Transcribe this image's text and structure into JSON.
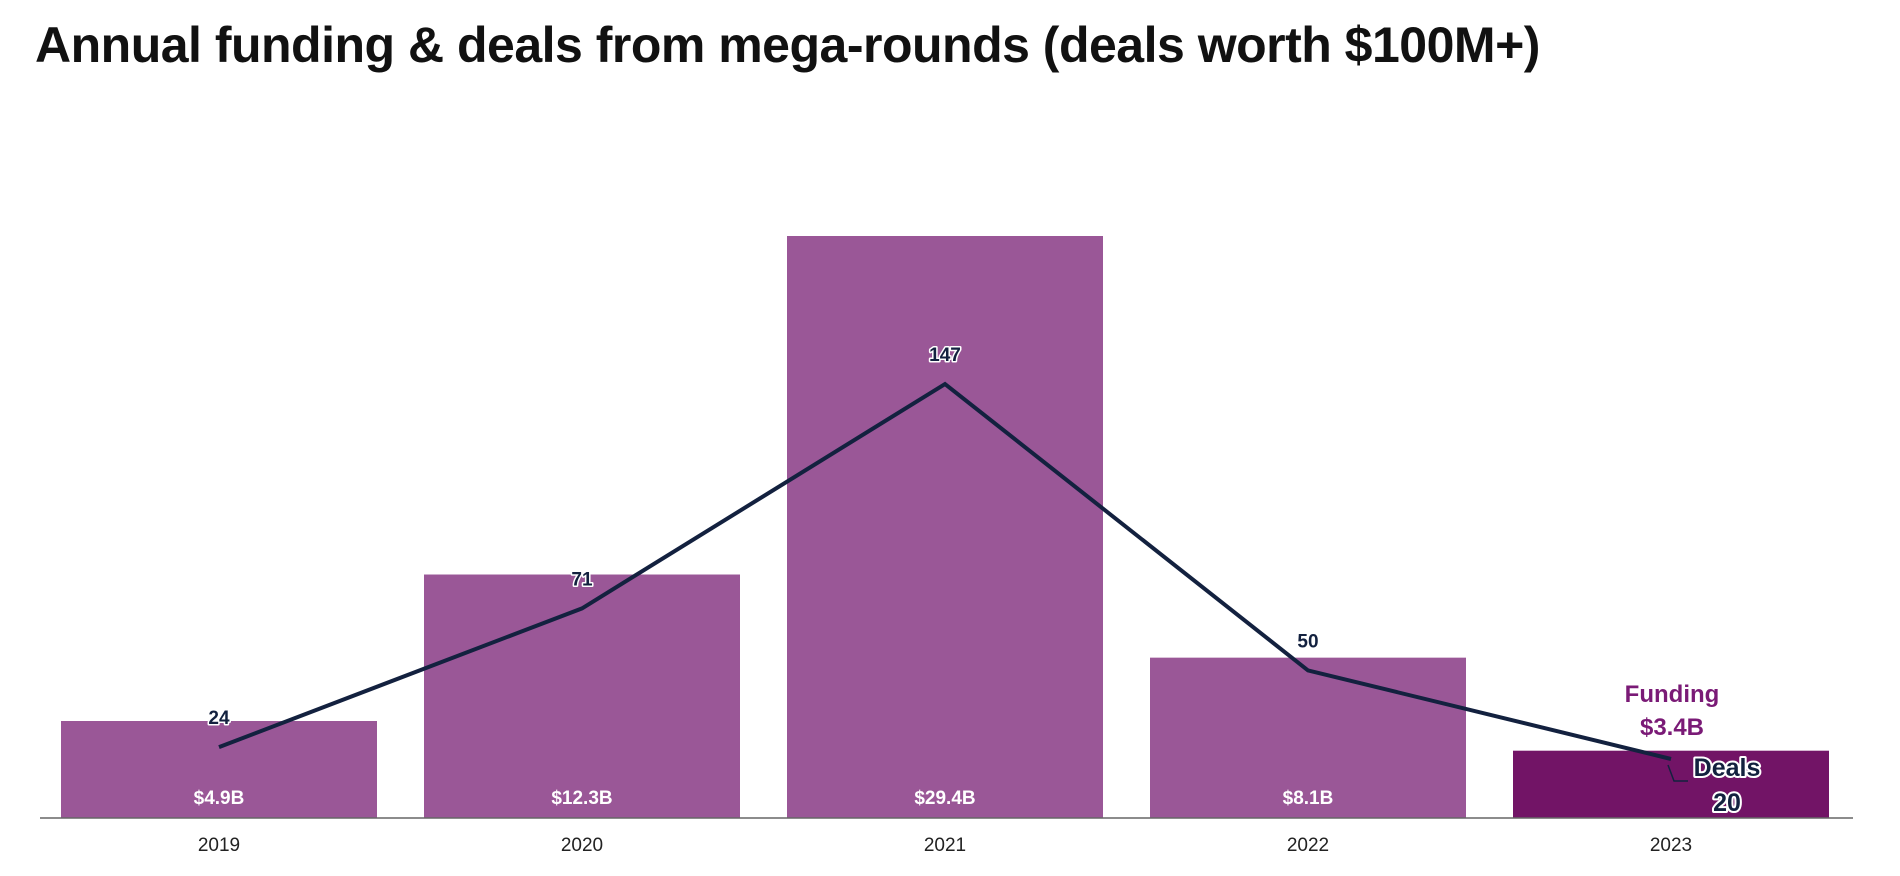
{
  "chart_data": {
    "type": "bar",
    "title": "Annual funding & deals from mega-rounds (deals worth $100M+)",
    "categories": [
      "2019",
      "2020",
      "2021",
      "2022",
      "2023"
    ],
    "series": [
      {
        "name": "Funding",
        "values": [
          4.9,
          12.3,
          29.4,
          8.1,
          3.4
        ],
        "labels": [
          "$4.9B",
          "$12.3B",
          "$29.4B",
          "$8.1B",
          "$3.4B"
        ],
        "color": "#9a5797",
        "highlight_color": "#721466"
      },
      {
        "name": "Deals",
        "type": "line",
        "values": [
          24,
          71,
          147,
          50,
          20
        ],
        "labels": [
          "24",
          "71",
          "147",
          "50",
          "20"
        ],
        "color": "#13213f"
      }
    ],
    "highlight_index": 4,
    "annotations": {
      "funding_name": "Funding",
      "funding_value": "$3.4B",
      "deals_name": "Deals",
      "deals_value": "20"
    },
    "xlabel": "",
    "ylabel": "",
    "legend": "none",
    "grid": false
  }
}
